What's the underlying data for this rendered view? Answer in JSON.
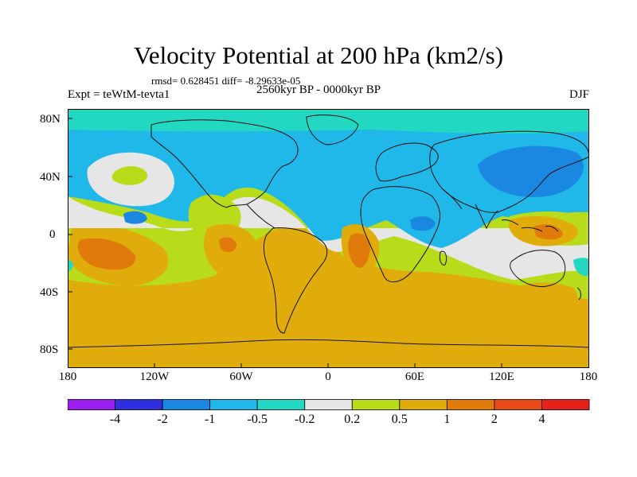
{
  "title": "Velocity Potential at 200 hPa (km2/s)",
  "subtitle_stats": "rmsd= 0.628451 diff= -8.29633e-05",
  "experiment": "Expt = teWtM-tevta1",
  "period": "2560kyr BP - 0000kyr BP",
  "season": "DJF",
  "lat_ticks": [
    "80N",
    "40N",
    "0",
    "40S",
    "80S"
  ],
  "lon_ticks": [
    "180",
    "120W",
    "60W",
    "0",
    "60E",
    "120E",
    "180"
  ],
  "colorbar": {
    "labels": [
      "-4",
      "-2",
      "-1",
      "-0.5",
      "-0.2",
      "0.2",
      "0.5",
      "1",
      "2",
      "4"
    ],
    "colors": [
      "#9a1ff0",
      "#2f2fe0",
      "#1a88e0",
      "#1fb8e8",
      "#22d8c2",
      "#e6e6e6",
      "#b9dc1a",
      "#e0ac0c",
      "#e07a0a",
      "#e84a1a",
      "#e8201a"
    ]
  }
}
